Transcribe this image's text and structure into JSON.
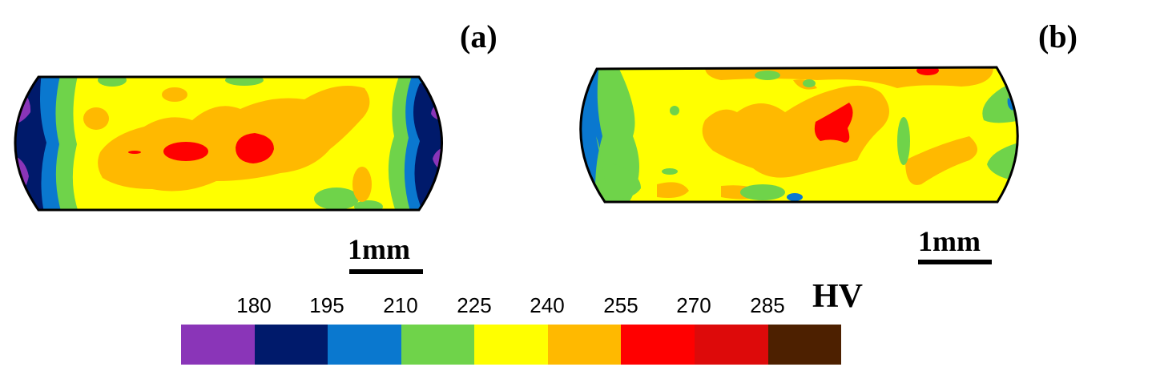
{
  "panels": {
    "a": {
      "label": "(a)",
      "scale_text": "1mm"
    },
    "b": {
      "label": "(b)",
      "scale_text": "1mm"
    }
  },
  "colorbar": {
    "unit": "HV",
    "ticks": [
      "180",
      "195",
      "210",
      "225",
      "240",
      "255",
      "270",
      "285"
    ],
    "colors": [
      "#8a35b8",
      "#001a6b",
      "#0a78cf",
      "#6fd34a",
      "#ffff00",
      "#ffb900",
      "#ff0000",
      "#dd0a0a",
      "#4d2000"
    ]
  }
}
